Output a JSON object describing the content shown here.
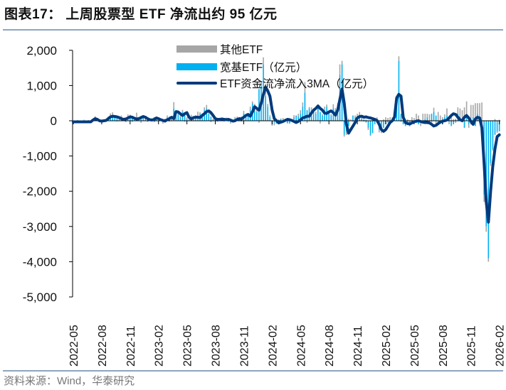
{
  "title": "图表17：  上周股票型 ETF 净流出约 95 亿元",
  "source": "资料来源：Wind，华泰研究",
  "colors": {
    "other": "#a6a6a6",
    "broad": "#00b0f0",
    "ma": "#003a7d"
  },
  "chart_data": {
    "type": "bar",
    "title": "上周股票型 ETF 净流出约 95 亿元",
    "xlabel": "",
    "ylabel": "",
    "ylim": [
      -5000,
      2000
    ],
    "yticks": [
      "2,000",
      "1,000",
      "0",
      "-1,000",
      "-2,000",
      "-3,000",
      "-4,000",
      "-5,000"
    ],
    "ytick_values": [
      2000,
      1000,
      0,
      -1000,
      -2000,
      -3000,
      -4000,
      -5000
    ],
    "xticks": [
      "2022-05",
      "2022-08",
      "2022-11",
      "2023-02",
      "2023-05",
      "2023-08",
      "2023-11",
      "2024-02",
      "2024-05",
      "2024-08",
      "2024-11",
      "2025-02",
      "2025-05",
      "2025-08",
      "2025-11",
      "2026-02"
    ],
    "weeks_per_tick": 13,
    "legend": [
      "其他ETF",
      "宽基ETF（亿元）",
      "ETF资金流净流入3MA（亿元）"
    ],
    "legend_position": "top-center",
    "grid": false,
    "series": [
      {
        "name": "其他ETF",
        "type": "bar",
        "values": [
          10,
          -20,
          20,
          -10,
          0,
          30,
          -30,
          20,
          10,
          -10,
          40,
          0,
          -20,
          30,
          -10,
          20,
          40,
          60,
          120,
          30,
          -20,
          50,
          120,
          30,
          -40,
          60,
          80,
          -30,
          20,
          150,
          40,
          -60,
          50,
          20,
          -30,
          60,
          10,
          -40,
          20,
          0,
          30,
          -50,
          20,
          60,
          -20,
          100,
          180,
          80,
          50,
          120,
          60,
          -30,
          40,
          100,
          50,
          20,
          60,
          180,
          40,
          30,
          80,
          100,
          60,
          -40,
          20,
          50,
          -30,
          20,
          40,
          -20,
          60,
          30,
          -40,
          20,
          50,
          40,
          60,
          -20,
          80,
          40,
          60,
          100,
          50,
          200,
          80,
          -60,
          120,
          200,
          300,
          80,
          60,
          -40,
          -80,
          60,
          20,
          -30,
          50,
          40,
          -20,
          30,
          40,
          60,
          -50,
          80,
          100,
          120,
          300,
          -60,
          40,
          80,
          100,
          60,
          120,
          -80,
          40,
          100,
          60,
          80,
          40,
          120,
          60,
          100,
          300,
          100,
          -50,
          -100,
          60,
          40,
          -30,
          50,
          80,
          100,
          60,
          -20,
          40,
          -60,
          -30,
          40,
          80,
          100,
          -80,
          -50,
          40,
          100,
          80,
          100,
          50,
          60,
          100,
          130,
          -30,
          20,
          60,
          40,
          -80,
          100,
          80,
          200,
          150,
          -100,
          200,
          150,
          100,
          180,
          -50,
          120,
          -80,
          250,
          150,
          100,
          80,
          200,
          -100,
          120,
          50,
          -60,
          180,
          250,
          300,
          380,
          400,
          -100,
          450,
          350,
          500,
          300,
          450,
          520,
          -200,
          -150,
          -100,
          -80,
          -50,
          50,
          -40,
          30
        ]
      },
      {
        "name": "宽基ETF（亿元）",
        "type": "bar",
        "values": [
          -40,
          -20,
          -60,
          -30,
          -10,
          -50,
          -40,
          -20,
          -30,
          30,
          90,
          20,
          -20,
          -40,
          10,
          20,
          80,
          150,
          120,
          100,
          140,
          60,
          30,
          40,
          70,
          120,
          90,
          60,
          30,
          80,
          70,
          140,
          110,
          50,
          20,
          10,
          60,
          100,
          40,
          10,
          20,
          -30,
          40,
          90,
          120,
          30,
          350,
          200,
          180,
          100,
          250,
          220,
          60,
          30,
          120,
          90,
          100,
          80,
          200,
          180,
          300,
          350,
          200,
          120,
          40,
          30,
          60,
          50,
          20,
          40,
          30,
          -20,
          -40,
          10,
          60,
          80,
          40,
          120,
          200,
          150,
          160,
          300,
          500,
          280,
          250,
          900,
          1000,
          1600,
          700,
          400,
          100,
          -100,
          -50,
          -80,
          20,
          60,
          30,
          20,
          -60,
          -80,
          10,
          100,
          150,
          120,
          200,
          400,
          800,
          300,
          350,
          300,
          250,
          200,
          350,
          250,
          150,
          300,
          400,
          200,
          150,
          350,
          300,
          400,
          1300,
          1600,
          -400,
          -300,
          -150,
          0,
          150,
          100,
          120,
          150,
          60,
          40,
          -50,
          -200,
          -400,
          -350,
          -100,
          0,
          -250,
          -300,
          -200,
          -100,
          -50,
          0,
          50,
          200,
          600,
          1700,
          200,
          -100,
          -150,
          -100,
          -80,
          -50,
          -30,
          -60,
          -100,
          -50,
          0,
          50,
          100,
          -20,
          200,
          250,
          150,
          -50,
          -30,
          -100,
          100,
          150,
          80,
          -150,
          -100,
          50,
          200,
          100,
          -20,
          -200,
          150,
          -100,
          -50,
          100,
          -150,
          200,
          50,
          -300,
          -2100,
          -3000,
          -3900,
          -1200,
          -800,
          -400,
          -300,
          -300
        ]
      },
      {
        "name": "ETF资金流净流入3MA（亿元）",
        "type": "line",
        "values": [
          -30,
          -30,
          -30,
          -30,
          -30,
          -30,
          -30,
          -30,
          -30,
          20,
          60,
          40,
          0,
          -10,
          0,
          10,
          60,
          110,
          130,
          120,
          110,
          90,
          60,
          40,
          50,
          80,
          110,
          100,
          70,
          50,
          60,
          90,
          120,
          100,
          60,
          30,
          20,
          40,
          80,
          60,
          30,
          10,
          -10,
          30,
          60,
          100,
          60,
          260,
          250,
          200,
          150,
          200,
          230,
          100,
          50,
          90,
          100,
          100,
          90,
          150,
          200,
          260,
          280,
          230,
          150,
          60,
          40,
          40,
          50,
          40,
          30,
          40,
          20,
          -10,
          0,
          40,
          60,
          50,
          100,
          150,
          180,
          130,
          250,
          400,
          350,
          300,
          500,
          750,
          950,
          850,
          700,
          300,
          60,
          0,
          -60,
          -40,
          -20,
          10,
          40,
          30,
          10,
          -20,
          -50,
          -20,
          30,
          80,
          100,
          130,
          130,
          220,
          300,
          350,
          420,
          350,
          300,
          220,
          210,
          250,
          280,
          230,
          160,
          300,
          600,
          900,
          500,
          -100,
          -350,
          -250,
          -150,
          -50,
          80,
          120,
          130,
          100,
          110,
          90,
          80,
          60,
          40,
          10,
          -100,
          -250,
          -300,
          -250,
          -150,
          -50,
          0,
          100,
          650,
          750,
          700,
          100,
          -50,
          -80,
          -90,
          -60,
          -30,
          -10,
          0,
          -20,
          -40,
          -50,
          -50,
          -60,
          -100,
          -150,
          -130,
          -80,
          -40,
          -10,
          0,
          20,
          80,
          150,
          200,
          180,
          100,
          30,
          0,
          100,
          150,
          80,
          -20,
          -100,
          50,
          100,
          80,
          -200,
          -1200,
          -2300,
          -2880,
          -2000,
          -1300,
          -800,
          -450,
          -400
        ]
      }
    ]
  }
}
